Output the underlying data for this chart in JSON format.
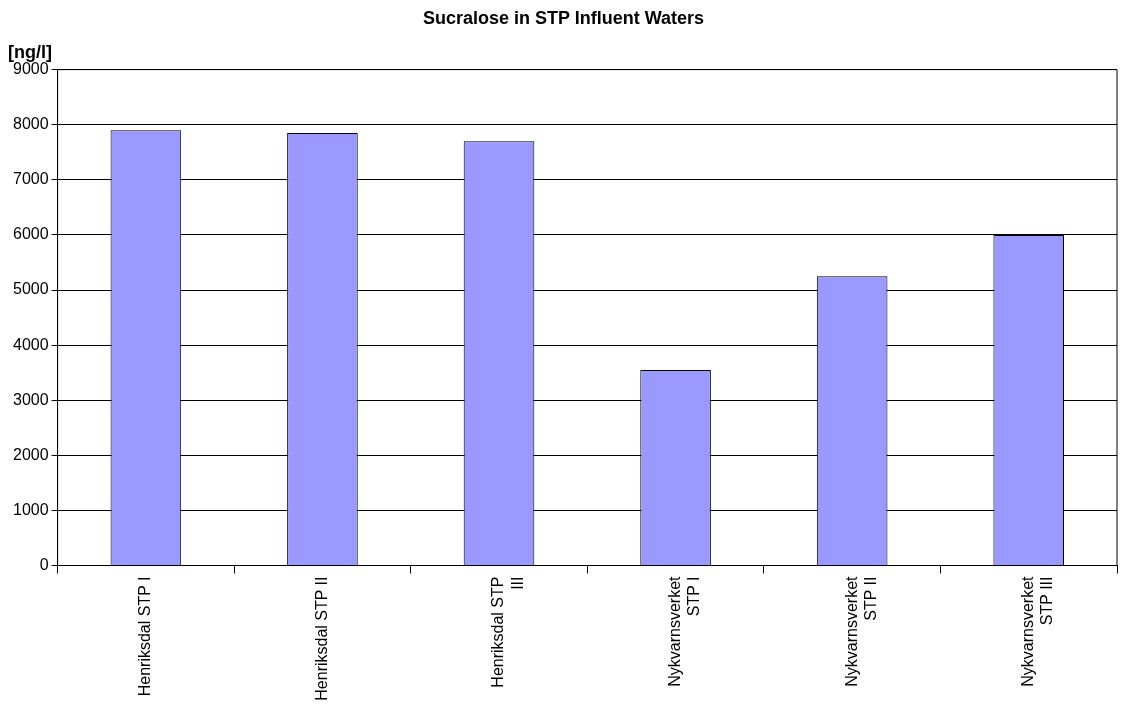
{
  "chart_data": {
    "type": "bar",
    "title": "Sucralose in STP Influent Waters",
    "ylabel": "[ng/l]",
    "categories": [
      "Henriksdal STP I",
      "Henriksdal STP II",
      "Henriksdal STP III",
      "Nykvarnsverket STP I",
      "Nykvarnsverket STP II",
      "Nykvarnsverket STP III"
    ],
    "values": [
      7900,
      7850,
      7700,
      3550,
      5250,
      6000
    ],
    "color": "#9999ff",
    "ylim": [
      0,
      9000
    ],
    "yticks": [
      0,
      1000,
      2000,
      3000,
      4000,
      5000,
      6000,
      7000,
      8000,
      9000
    ],
    "grid": "y",
    "legend": false
  }
}
